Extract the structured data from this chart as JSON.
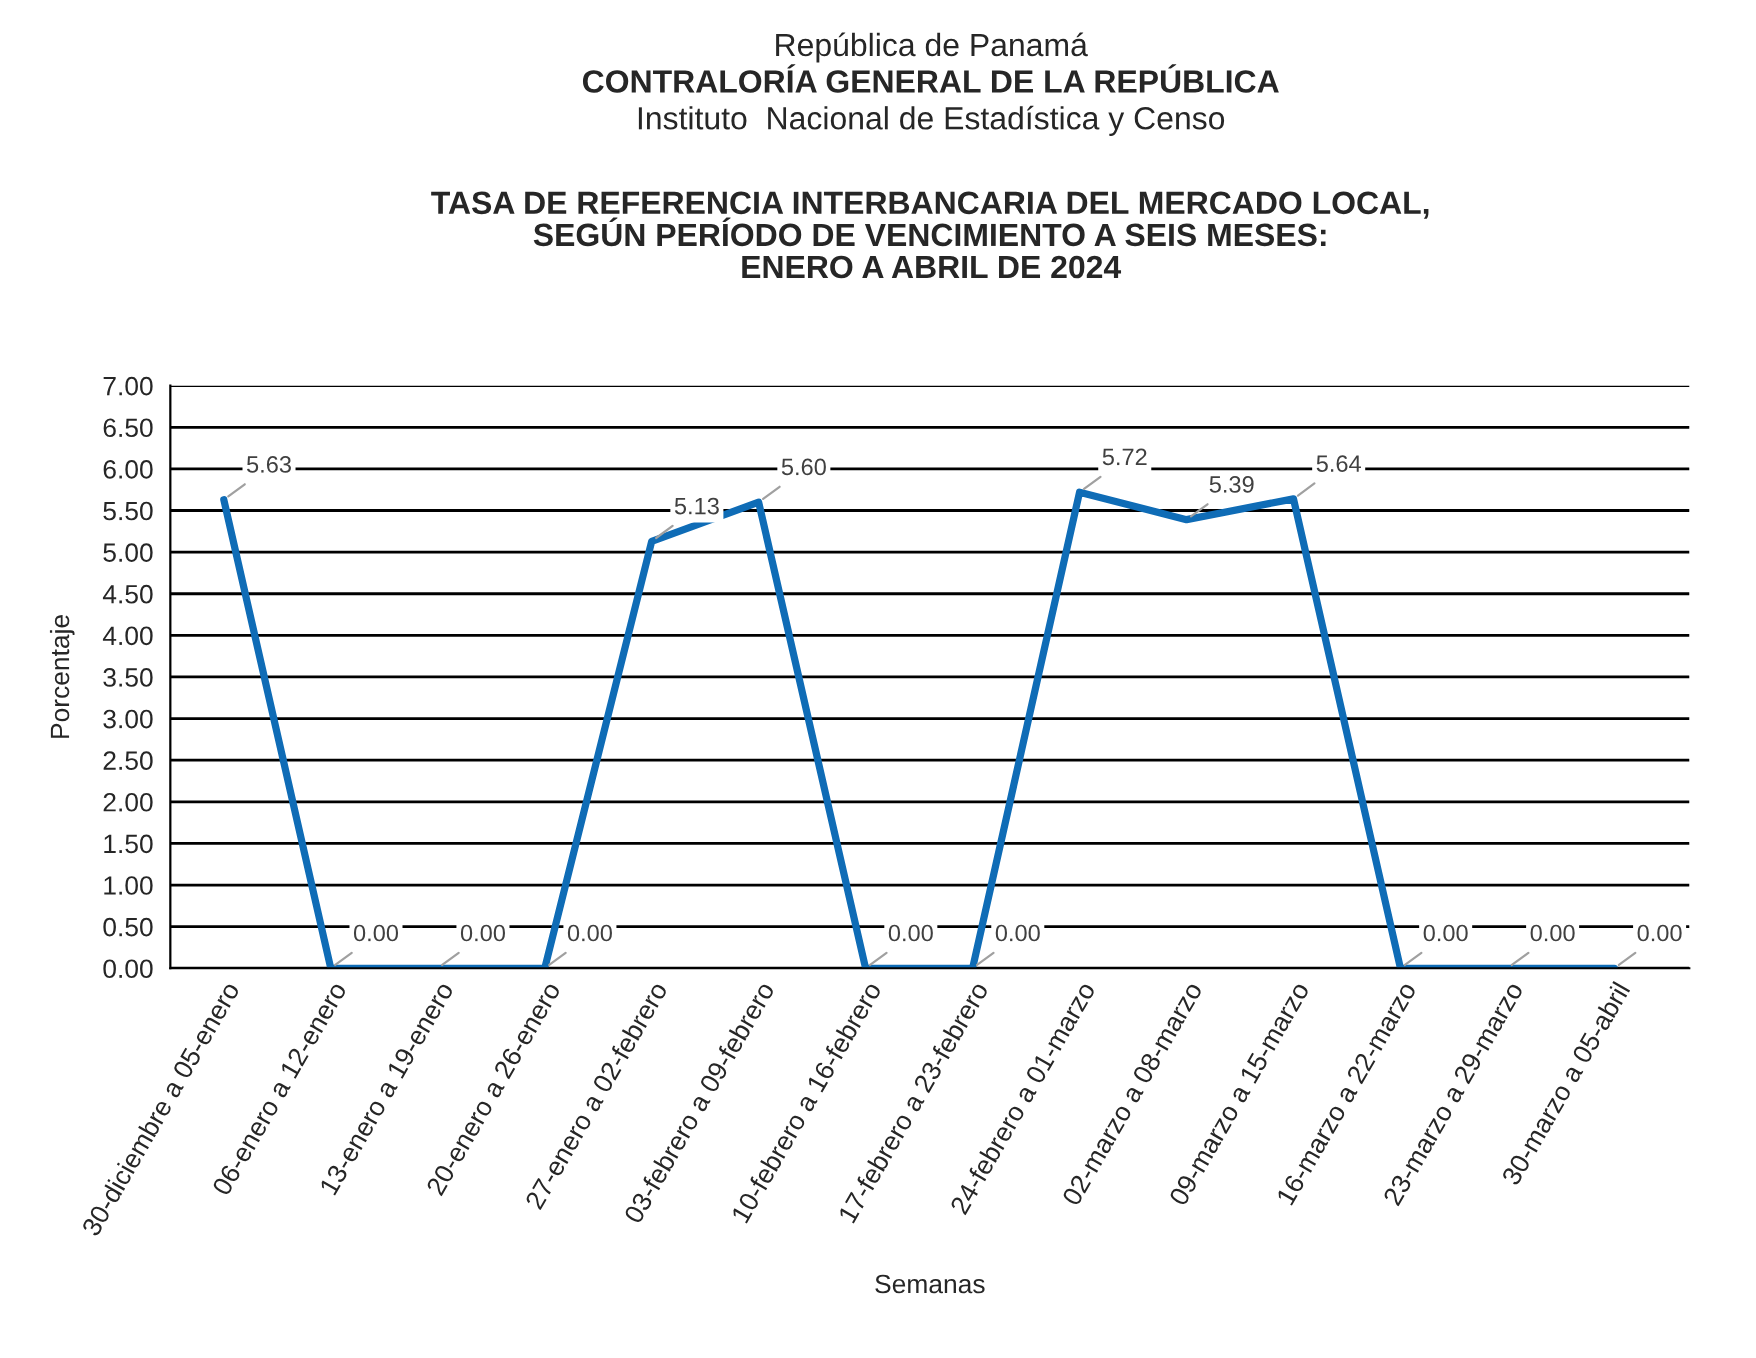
{
  "chart_data": {
    "type": "line",
    "annotations": [
      "República de Panamá",
      "CONTRALORÍA GENERAL DE LA REPÚBLICA",
      "Instituto  Nacional de Estadística y Censo"
    ],
    "title": "TASA DE REFERENCIA INTERBANCARIA DEL MERCADO LOCAL,\nSEGÚN PERÍODO DE VENCIMIENTO A SEIS MESES:\nENERO A ABRIL DE 2024",
    "xlabel": "Semanas",
    "ylabel": "Porcentaje",
    "categories": [
      "30-diciembre a 05-enero",
      "06-enero a 12-enero",
      "13-enero a 19-enero",
      "20-enero a 26-enero",
      "27-enero a 02-febrero",
      "03-febrero a 09-febrero",
      "10-febrero a 16-febrero",
      "17-febrero a 23-febrero",
      "24-febrero a 01-marzo",
      "02-marzo a 08-marzo",
      "09-marzo a 15-marzo",
      "16-marzo a 22-marzo",
      "23-marzo a 29-marzo",
      "30-marzo a 05-abril"
    ],
    "series": [
      {
        "color": "#0f6cb6",
        "values": [
          5.63,
          0.0,
          0.0,
          0.0,
          5.13,
          5.6,
          0.0,
          0.0,
          5.72,
          5.39,
          5.64,
          0.0,
          0.0,
          0.0
        ],
        "value_labels": [
          "5.63",
          "0.00",
          "0.00",
          "0.00",
          "5.13",
          "5.60",
          "0.00",
          "0.00",
          "5.72",
          "5.39",
          "5.64",
          "0.00",
          "0.00",
          "0.00"
        ]
      }
    ],
    "ylim": [
      0,
      7
    ],
    "yticks": [
      {
        "value": 0,
        "label": "0.00"
      },
      {
        "value": 0.5,
        "label": "0.50"
      },
      {
        "value": 1,
        "label": "1.00"
      },
      {
        "value": 1.5,
        "label": "1.50"
      },
      {
        "value": 2,
        "label": "2.00"
      },
      {
        "value": 2.5,
        "label": "2.50"
      },
      {
        "value": 3,
        "label": "3.00"
      },
      {
        "value": 3.5,
        "label": "3.50"
      },
      {
        "value": 4,
        "label": "4.00"
      },
      {
        "value": 4.5,
        "label": "4.50"
      },
      {
        "value": 5,
        "label": "5.00"
      },
      {
        "value": 5.5,
        "label": "5.50"
      },
      {
        "value": 6,
        "label": "6.00"
      },
      {
        "value": 6.5,
        "label": "6.50"
      },
      {
        "value": 7,
        "label": "7.00"
      }
    ],
    "grid": "y",
    "marker": "none",
    "line_style": "solid"
  }
}
